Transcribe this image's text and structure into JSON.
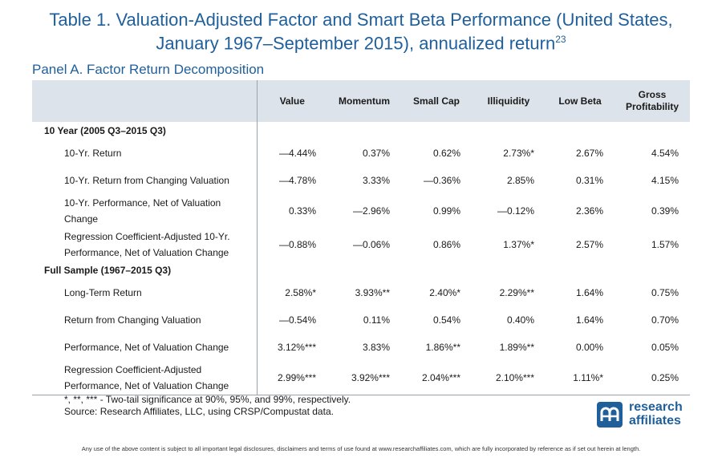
{
  "title": {
    "line1": "Table 1. Valuation-Adjusted Factor and Smart Beta Performance (United States,",
    "line2": "January 1967–September  2015), annualized return",
    "footnote_ref": "23"
  },
  "panel_title": "Panel A. Factor Return Decomposition",
  "table": {
    "columns": [
      "Value",
      "Momentum",
      "Small Cap",
      "Illiquidity",
      "Low Beta",
      "Gross Profitability"
    ],
    "sections": [
      {
        "heading": "10 Year (2005 Q3–2015 Q3)",
        "rows": [
          {
            "label": "10-Yr. Return",
            "values": [
              "—4.44%",
              "0.37%",
              "0.62%",
              "2.73%*",
              "2.67%",
              "4.54%"
            ]
          },
          {
            "label": "10-Yr. Return from Changing Valuation",
            "values": [
              "—4.78%",
              "3.33%",
              "—0.36%",
              "2.85%",
              "0.31%",
              "4.15%"
            ]
          },
          {
            "label": "10-Yr. Performance, Net of Valuation Change",
            "values": [
              "0.33%",
              "—2.96%",
              "0.99%",
              "—0.12%",
              "2.36%",
              "0.39%"
            ]
          },
          {
            "label": "Regression Coefficient-Adjusted 10-Yr. Performance, Net of Valuation Change",
            "values": [
              "—0.88%",
              "—0.06%",
              "0.86%",
              "1.37%*",
              "2.57%",
              "1.57%"
            ]
          }
        ]
      },
      {
        "heading": "Full Sample (1967–2015 Q3)",
        "rows": [
          {
            "label": "Long-Term Return",
            "values": [
              "2.58%*",
              "3.93%**",
              "2.40%*",
              "2.29%**",
              "1.64%",
              "0.75%"
            ]
          },
          {
            "label": "Return from Changing Valuation",
            "values": [
              "—0.54%",
              "0.11%",
              "0.54%",
              "0.40%",
              "1.64%",
              "0.70%"
            ]
          },
          {
            "label": "Performance, Net of Valuation Change",
            "values": [
              "3.12%***",
              "3.83%",
              "1.86%**",
              "1.89%**",
              "0.00%",
              "0.05%"
            ]
          },
          {
            "label": "Regression Coefficient-Adjusted Performance, Net of Valuation Change",
            "values": [
              "2.99%***",
              "3.92%***",
              "2.04%***",
              "2.10%***",
              "1.11%*",
              "0.25%"
            ]
          }
        ]
      }
    ]
  },
  "notes": {
    "significance": "*, **, *** - Two-tail significance at 90%, 95%, and 99%, respectively.",
    "source": "Source: Research Affiliates, LLC, using CRSP/Compustat data."
  },
  "logo": {
    "line1": "research",
    "line2": "affiliates",
    "color": "#1f5f9a"
  },
  "disclaimer": "Any use of the above content is subject to all important legal disclosures, disclaimers and terms of use found at www.researchaffiliates.com, which are fully incorporated by reference as if set out herein at length."
}
